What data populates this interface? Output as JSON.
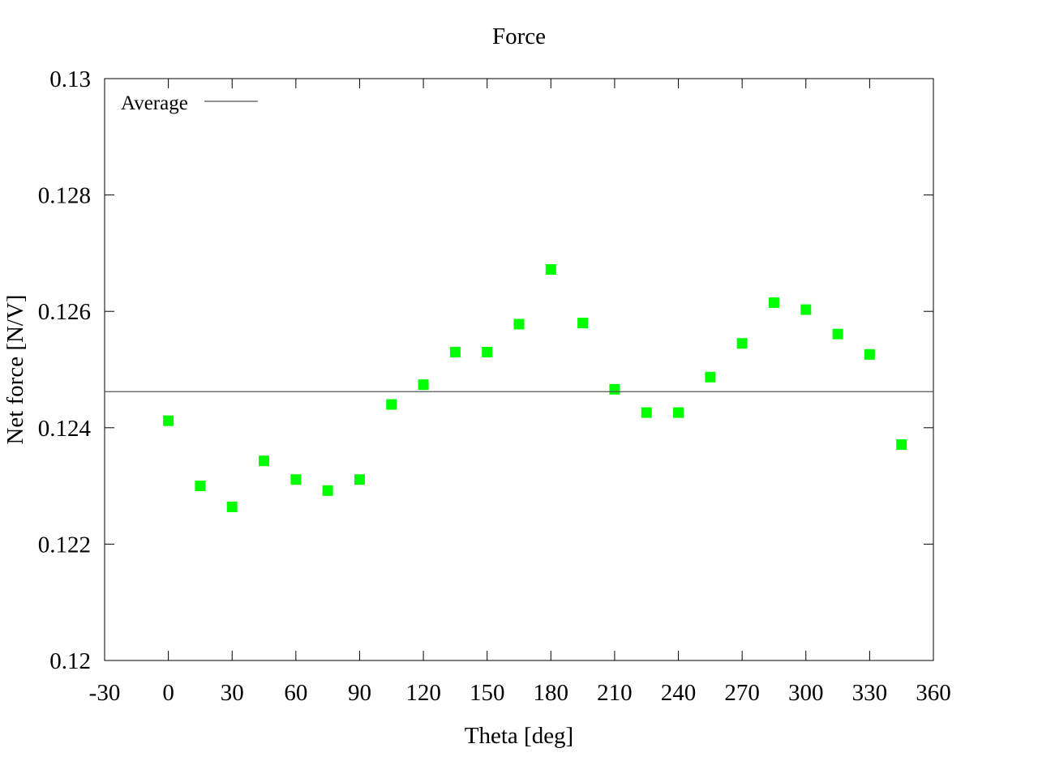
{
  "chart_data": {
    "type": "scatter",
    "title": "Force",
    "xlabel": "Theta [deg]",
    "ylabel": "Net force [N/V]",
    "xlim": [
      -30,
      360
    ],
    "ylim": [
      0.12,
      0.13
    ],
    "xticks": [
      -30,
      0,
      30,
      60,
      90,
      120,
      150,
      180,
      210,
      240,
      270,
      300,
      330,
      360
    ],
    "yticks": [
      0.12,
      0.122,
      0.124,
      0.126,
      0.128,
      0.13
    ],
    "xtick_labels": [
      "-30",
      "0",
      "30",
      "60",
      "90",
      "120",
      "150",
      "180",
      "210",
      "240",
      "270",
      "300",
      "330",
      "360"
    ],
    "ytick_labels": [
      "0.12",
      "0.122",
      "0.124",
      "0.126",
      "0.128",
      "0.13"
    ],
    "grid": false,
    "legend": {
      "position": "top-left",
      "entries": [
        "Average"
      ]
    },
    "series": [
      {
        "marker": "square",
        "color": "#00ff00",
        "x": [
          0,
          15,
          30,
          45,
          60,
          75,
          90,
          105,
          120,
          135,
          150,
          165,
          180,
          195,
          210,
          225,
          240,
          255,
          270,
          285,
          300,
          315,
          330,
          345
        ],
        "y": [
          0.12412,
          0.123,
          0.12264,
          0.12343,
          0.12311,
          0.12292,
          0.12311,
          0.1244,
          0.12474,
          0.1253,
          0.1253,
          0.12578,
          0.12672,
          0.1258,
          0.12466,
          0.12426,
          0.12426,
          0.12487,
          0.12545,
          0.12615,
          0.12603,
          0.12561,
          0.12526,
          0.12371
        ]
      },
      {
        "name": "Average",
        "type": "hline",
        "color": "#555555",
        "y": 0.12462
      }
    ]
  }
}
